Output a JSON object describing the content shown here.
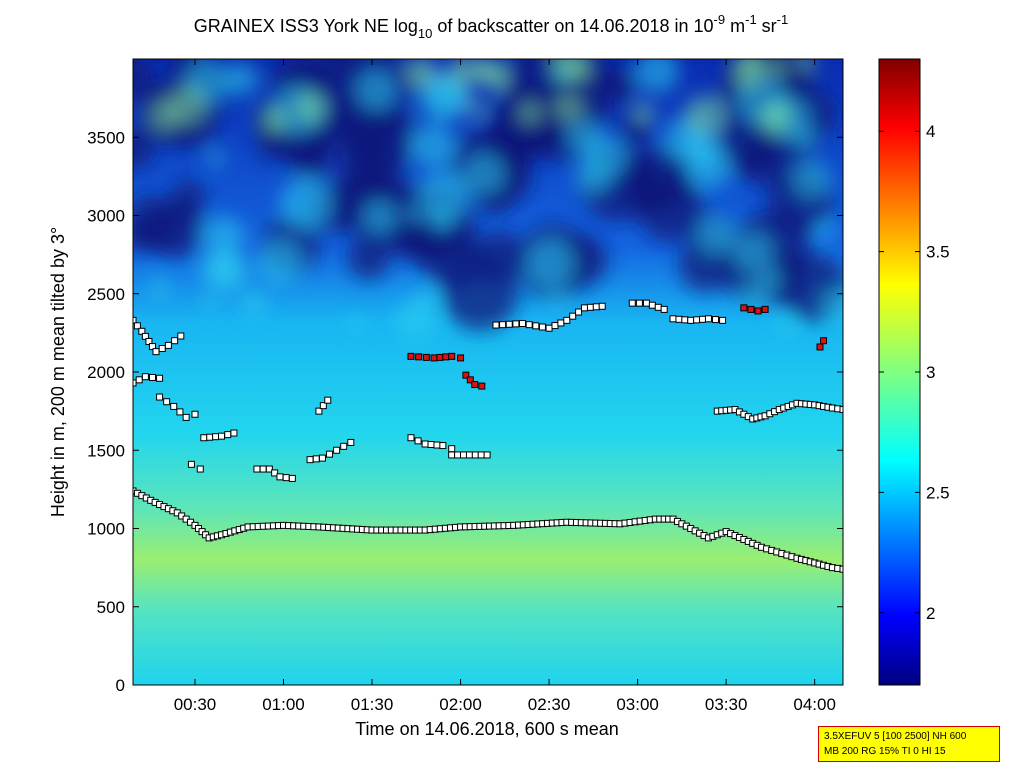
{
  "chart_data": {
    "type": "heatmap",
    "title": {
      "prefix": "GRAINEX ISS3 York NE log",
      "log_base": "10",
      "middle": " of backscatter on 14.06.2018 in 10",
      "exp1": "-9",
      "unit_m": " m",
      "exp2": "-1",
      "unit_sr": " sr",
      "exp3": "-1"
    },
    "xlabel": "Time on 14.06.2018, 600 s mean",
    "ylabel": "Height in m, 200 m mean tilted by 3°",
    "xlim_hours": [
      0.15,
      4.16
    ],
    "ylim": [
      0,
      4000
    ],
    "x_ticks": [
      {
        "value": 0.5,
        "label": "00:30"
      },
      {
        "value": 1.0,
        "label": "01:00"
      },
      {
        "value": 1.5,
        "label": "01:30"
      },
      {
        "value": 2.0,
        "label": "02:00"
      },
      {
        "value": 2.5,
        "label": "02:30"
      },
      {
        "value": 3.0,
        "label": "03:00"
      },
      {
        "value": 3.5,
        "label": "03:30"
      },
      {
        "value": 4.0,
        "label": "04:00"
      }
    ],
    "y_ticks": [
      {
        "value": 0,
        "label": "0"
      },
      {
        "value": 500,
        "label": "500"
      },
      {
        "value": 1000,
        "label": "1000"
      },
      {
        "value": 1500,
        "label": "1500"
      },
      {
        "value": 2000,
        "label": "2000"
      },
      {
        "value": 2500,
        "label": "2500"
      },
      {
        "value": 3000,
        "label": "3000"
      },
      {
        "value": 3500,
        "label": "3500"
      }
    ],
    "colorbar": {
      "min": 1.7,
      "max": 4.3,
      "colormap": "jet",
      "ticks": [
        {
          "value": 2.0,
          "label": "2"
        },
        {
          "value": 2.5,
          "label": "2.5"
        },
        {
          "value": 3.0,
          "label": "3"
        },
        {
          "value": 3.5,
          "label": "3.5"
        },
        {
          "value": 4.0,
          "label": "4"
        }
      ]
    },
    "layer_lines": [
      {
        "name": "mixing-layer",
        "marker": "white-square",
        "points": [
          [
            0.15,
            1240
          ],
          [
            0.25,
            1180
          ],
          [
            0.4,
            1100
          ],
          [
            0.5,
            1020
          ],
          [
            0.58,
            940
          ],
          [
            0.65,
            960
          ],
          [
            0.8,
            1010
          ],
          [
            1.0,
            1020
          ],
          [
            1.2,
            1010
          ],
          [
            1.5,
            990
          ],
          [
            1.8,
            990
          ],
          [
            2.0,
            1010
          ],
          [
            2.3,
            1020
          ],
          [
            2.6,
            1040
          ],
          [
            2.9,
            1030
          ],
          [
            3.1,
            1060
          ],
          [
            3.2,
            1060
          ],
          [
            3.3,
            1000
          ],
          [
            3.4,
            940
          ],
          [
            3.45,
            960
          ],
          [
            3.5,
            980
          ],
          [
            3.7,
            880
          ],
          [
            3.9,
            810
          ],
          [
            4.0,
            780
          ],
          [
            4.1,
            750
          ],
          [
            4.16,
            740
          ]
        ]
      },
      {
        "name": "upper-layer",
        "marker": "white-square",
        "points": [
          [
            3.45,
            1750
          ],
          [
            3.55,
            1760
          ],
          [
            3.65,
            1700
          ],
          [
            3.72,
            1720
          ],
          [
            3.8,
            1760
          ],
          [
            3.9,
            1800
          ],
          [
            4.0,
            1790
          ],
          [
            4.1,
            1770
          ],
          [
            4.16,
            1760
          ]
        ]
      }
    ],
    "layer_segments": [
      {
        "color": "#ffffff",
        "points": [
          [
            0.15,
            2330
          ],
          [
            0.2,
            2260
          ],
          [
            0.28,
            2130
          ],
          [
            0.35,
            2170
          ],
          [
            0.42,
            2230
          ]
        ]
      },
      {
        "color": "#ffffff",
        "points": [
          [
            0.15,
            1930
          ],
          [
            0.22,
            1970
          ],
          [
            0.3,
            1960
          ]
        ]
      },
      {
        "color": "#ffffff",
        "points": [
          [
            0.3,
            1840
          ],
          [
            0.38,
            1780
          ],
          [
            0.45,
            1710
          ],
          [
            0.5,
            1730
          ]
        ]
      },
      {
        "color": "#ffffff",
        "points": [
          [
            0.55,
            1580
          ],
          [
            0.65,
            1590
          ],
          [
            0.72,
            1610
          ]
        ]
      },
      {
        "color": "#ffffff",
        "points": [
          [
            0.48,
            1410
          ],
          [
            0.53,
            1380
          ]
        ]
      },
      {
        "color": "#ffffff",
        "points": [
          [
            0.85,
            1380
          ],
          [
            0.92,
            1380
          ],
          [
            0.98,
            1330
          ],
          [
            1.05,
            1320
          ]
        ]
      },
      {
        "color": "#ffffff",
        "points": [
          [
            1.15,
            1440
          ],
          [
            1.22,
            1450
          ],
          [
            1.3,
            1500
          ],
          [
            1.38,
            1550
          ]
        ]
      },
      {
        "color": "#ffffff",
        "points": [
          [
            1.2,
            1750
          ],
          [
            1.25,
            1820
          ]
        ]
      },
      {
        "color": "#ffffff",
        "points": [
          [
            1.72,
            1580
          ],
          [
            1.8,
            1540
          ],
          [
            1.9,
            1530
          ],
          [
            1.95,
            1510
          ]
        ]
      },
      {
        "color": "#ffffff",
        "points": [
          [
            1.95,
            1470
          ],
          [
            2.05,
            1470
          ],
          [
            2.15,
            1470
          ]
        ]
      },
      {
        "color": "#ffffff",
        "points": [
          [
            2.2,
            2300
          ],
          [
            2.35,
            2310
          ],
          [
            2.5,
            2280
          ],
          [
            2.6,
            2330
          ],
          [
            2.7,
            2410
          ],
          [
            2.8,
            2420
          ]
        ]
      },
      {
        "color": "#ffffff",
        "points": [
          [
            2.97,
            2440
          ],
          [
            3.05,
            2440
          ],
          [
            3.15,
            2400
          ]
        ]
      },
      {
        "color": "#ffffff",
        "points": [
          [
            3.2,
            2340
          ],
          [
            3.3,
            2330
          ],
          [
            3.4,
            2340
          ],
          [
            3.48,
            2330
          ]
        ]
      },
      {
        "color": "#dd1111",
        "points": [
          [
            1.72,
            2100
          ],
          [
            1.85,
            2090
          ],
          [
            1.95,
            2100
          ],
          [
            2.0,
            2090
          ]
        ]
      },
      {
        "color": "#dd1111",
        "points": [
          [
            2.03,
            1980
          ],
          [
            2.08,
            1920
          ],
          [
            2.12,
            1910
          ]
        ]
      },
      {
        "color": "#dd1111",
        "points": [
          [
            3.6,
            2410
          ],
          [
            3.68,
            2390
          ],
          [
            3.72,
            2400
          ]
        ]
      },
      {
        "color": "#dd1111",
        "points": [
          [
            4.03,
            2160
          ],
          [
            4.05,
            2200
          ]
        ]
      }
    ],
    "annotation": {
      "line1": "3.5XEFUV 5 [100 2500] NH 600",
      "line2": "MB 200 RG 15% TI 0 HI 15"
    }
  }
}
